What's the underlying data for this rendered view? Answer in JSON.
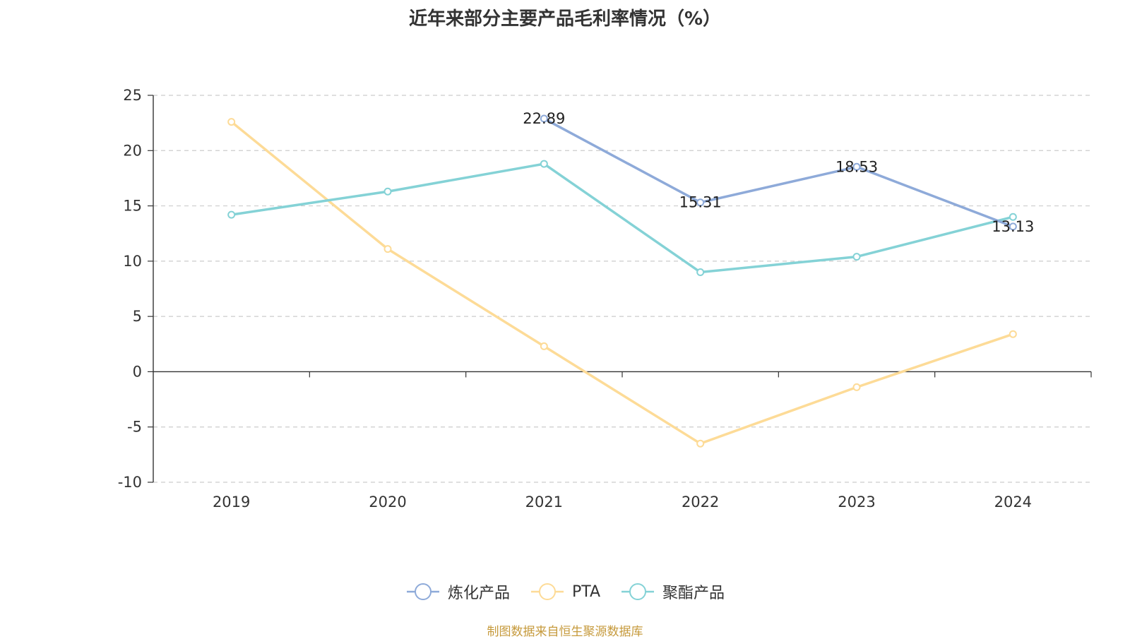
{
  "chart_data": {
    "type": "line",
    "title": "近年来部分主要产品毛利率情况（%）",
    "categories": [
      "2019",
      "2020",
      "2021",
      "2022",
      "2023",
      "2024"
    ],
    "ylim": [
      -10,
      25
    ],
    "yticks": [
      25,
      20,
      15,
      10,
      5,
      0,
      -5,
      -10
    ],
    "grid": true,
    "legend_position": "bottom",
    "series": [
      {
        "name": "炼化产品",
        "color": "#8eaad9",
        "values": [
          null,
          null,
          22.89,
          15.31,
          18.53,
          13.13
        ],
        "labels": [
          null,
          null,
          "22.89",
          "15.31",
          "18.53",
          "13.13"
        ]
      },
      {
        "name": "PTA",
        "color": "#fddb97",
        "values": [
          22.6,
          11.1,
          2.3,
          -6.5,
          -1.4,
          3.4
        ],
        "labels": [
          null,
          null,
          null,
          null,
          null,
          null
        ]
      },
      {
        "name": "聚酯产品",
        "color": "#84d2d6",
        "values": [
          14.2,
          16.3,
          18.8,
          9.0,
          10.4,
          14.0
        ],
        "labels": [
          null,
          null,
          null,
          null,
          null,
          null
        ]
      }
    ]
  },
  "footer": {
    "source": "制图数据来自恒生聚源数据库"
  }
}
